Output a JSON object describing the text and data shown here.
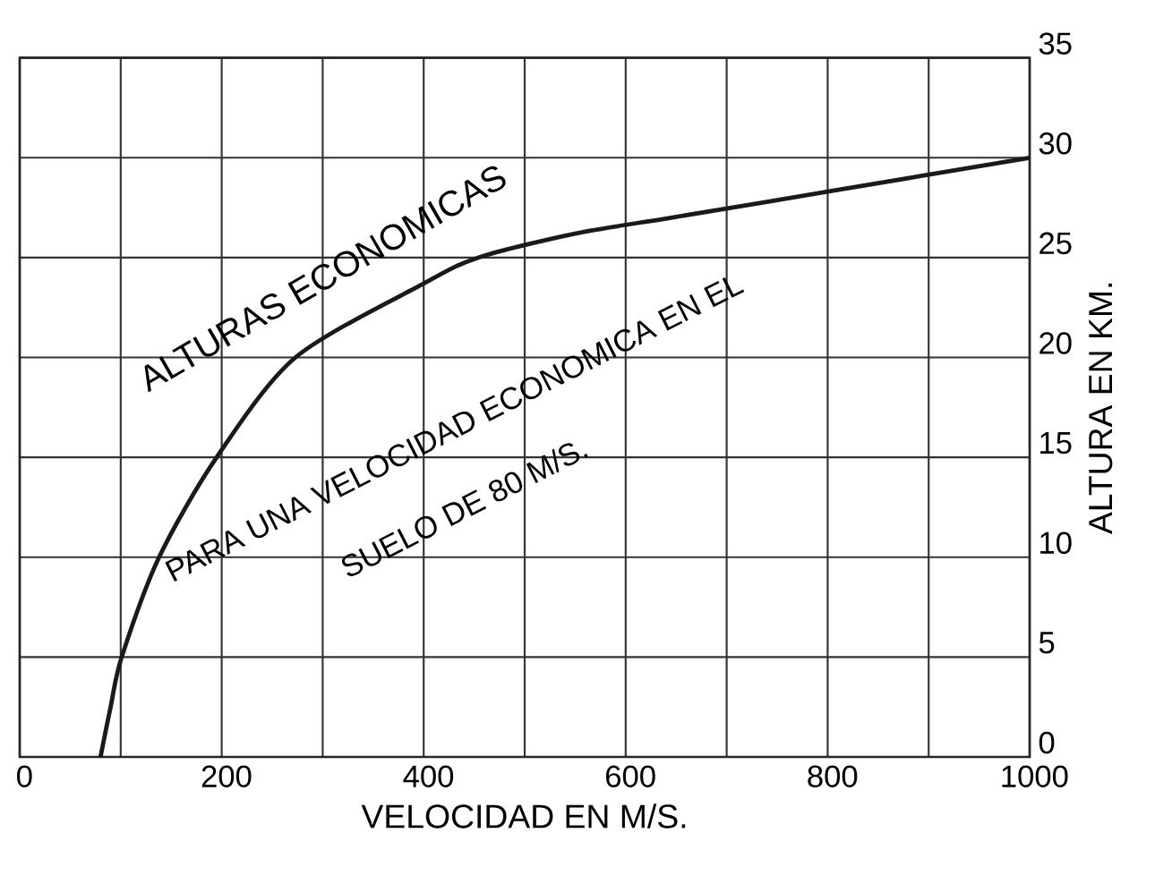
{
  "chart_data": {
    "type": "line",
    "xlabel": "VELOCIDAD EN M/S.",
    "ylabel": "ALTURA EN KM.",
    "annotations": [
      "ALTURAS ECONOMICAS",
      "PARA UNA VELOCIDAD ECONOMICA EN EL",
      "SUELO DE 80 M/S."
    ],
    "x": [
      80,
      90,
      101,
      138,
      195,
      273,
      400,
      454,
      550,
      645,
      800,
      1000
    ],
    "series": [
      {
        "color": "#1a1a1a",
        "values": [
          0,
          2.5,
          5,
          10,
          15,
          20,
          23.7,
          25,
          26.2,
          27,
          28.3,
          30
        ]
      }
    ],
    "xlim": [
      0,
      1000
    ],
    "ylim": [
      0,
      35
    ],
    "xticks": [
      0,
      {
        "value": 100,
        "label": null
      },
      200,
      {
        "value": 300,
        "label": null
      },
      400,
      {
        "value": 500,
        "label": null
      },
      600,
      {
        "value": 700,
        "label": null
      },
      800,
      {
        "value": 900,
        "label": null
      },
      1000
    ],
    "yticks": [
      0,
      5,
      10,
      15,
      20,
      25,
      30,
      35
    ],
    "grid": true,
    "line_style": "solid"
  }
}
